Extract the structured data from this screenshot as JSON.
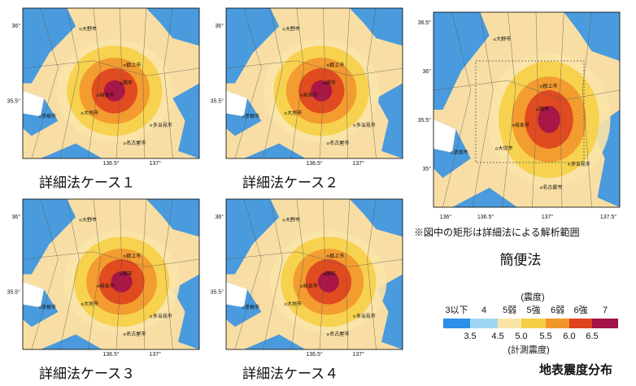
{
  "panels": [
    {
      "caption": "詳細法ケース１",
      "yticks": [
        "36°",
        "35.5°"
      ],
      "xticks": [
        "136.5°",
        "137°"
      ],
      "cities": [
        "大野市",
        "郡上市",
        "関市",
        "岐阜市",
        "大垣市",
        "彦根市",
        "多治見市",
        "名古屋市"
      ]
    },
    {
      "caption": "詳細法ケース２",
      "yticks": [
        "36°",
        "35.5°"
      ],
      "xticks": [
        "136.5°",
        "137°"
      ],
      "cities": [
        "大野市",
        "郡上市",
        "関市",
        "岐阜市",
        "大垣市",
        "彦根市",
        "多治見市",
        "名古屋市"
      ]
    },
    {
      "caption": "詳細法ケース３",
      "yticks": [
        "36°",
        "35.5°"
      ],
      "xticks": [
        "136.5°",
        "137°"
      ],
      "cities": [
        "大野市",
        "郡上市",
        "関市",
        "岐阜市",
        "大垣市",
        "彦根市",
        "多治見市",
        "名古屋市"
      ]
    },
    {
      "caption": "詳細法ケース４",
      "yticks": [
        "36°",
        "35.5°"
      ],
      "xticks": [
        "136.5°",
        "137°"
      ],
      "cities": [
        "大野市",
        "郡上市",
        "関市",
        "岐阜市",
        "大垣市",
        "彦根市",
        "多治見市",
        "名古屋市"
      ]
    }
  ],
  "overview": {
    "yticks": [
      "36.5°",
      "36°",
      "35.5°",
      "35°"
    ],
    "xticks": [
      "136°",
      "136.5°",
      "137°",
      "137.5°"
    ],
    "cities": [
      "大野市",
      "郡上市",
      "関市",
      "岐阜市",
      "大垣市",
      "彦根市",
      "多治見市",
      "名古屋市"
    ],
    "note": "※図中の矩形は詳細法による解析範囲",
    "caption": "簡便法"
  },
  "legend": {
    "title": "(震度)",
    "classes": [
      "3以下",
      "4",
      "5弱",
      "5強",
      "6弱",
      "6強",
      "7"
    ],
    "bounds": [
      "3.5",
      "4.5",
      "5.0",
      "5.5",
      "6.0",
      "6.5"
    ],
    "colors": [
      "#2c8fe8",
      "#9fd6f2",
      "#fbe4a8",
      "#f6cf45",
      "#f2962c",
      "#de421e",
      "#a3124a"
    ],
    "subtitle": "(計測震度)"
  },
  "caption": "地表震度分布"
}
